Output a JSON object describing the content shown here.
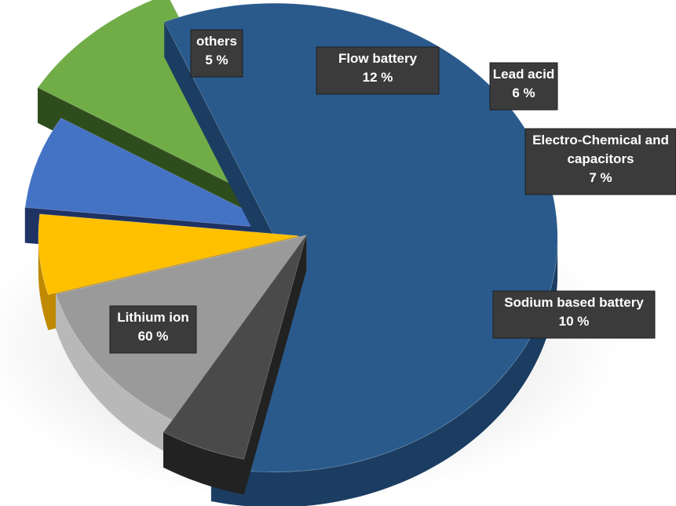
{
  "chart_data": {
    "type": "pie",
    "title": "",
    "legend": "none",
    "slices": [
      {
        "label": "Lithium ion",
        "value": 60,
        "value_label": "60 %",
        "color": "#2a5a8c",
        "side_color": "#1b3d62"
      },
      {
        "label": "others",
        "value": 5,
        "value_label": "5 %",
        "color": "#4a4a4a",
        "side_color": "#222222"
      },
      {
        "label": "Flow battery",
        "value": 12,
        "value_label": "12 %",
        "color": "#9a9a9a",
        "side_color": "#b8b8b8"
      },
      {
        "label": "Lead acid",
        "value": 6,
        "value_label": "6 %",
        "color": "#ffc000",
        "side_color": "#c08a00"
      },
      {
        "label": "Electro-Chemical and capacitors",
        "value": 7,
        "value_label": "7 %",
        "color": "#4472c4",
        "side_color": "#1e3264"
      },
      {
        "label": "Sodium based battery",
        "value": 10,
        "value_label": "10 %",
        "color": "#70ad47",
        "side_color": "#2e4d1c"
      }
    ]
  }
}
